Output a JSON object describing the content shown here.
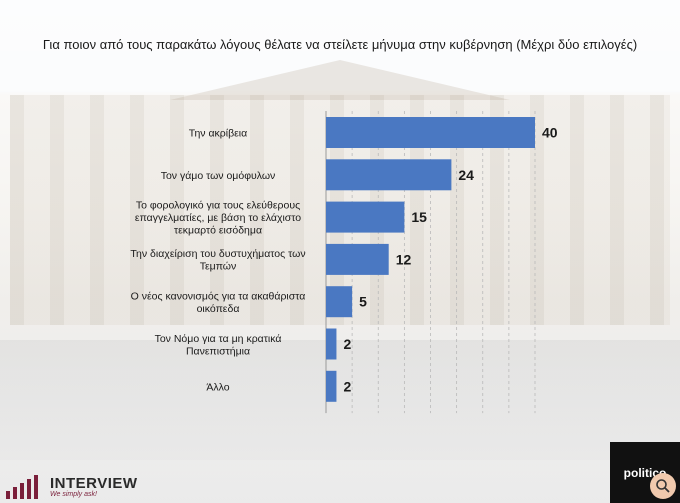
{
  "title": "Για ποιον από τους παρακάτω λόγους θέλατε να στείλετε μήνυμα στην κυβέρνηση (Μέχρι δύο επιλογές)",
  "chart_data": {
    "type": "bar",
    "orientation": "horizontal",
    "categories": [
      [
        "Την ακρίβεια"
      ],
      [
        "Τον γάμο των ομόφυλων"
      ],
      [
        "Το φορολογικό για τους ελεύθερους",
        "επαγγελματίες, με βάση το ελάχιστο",
        "τεκμαρτό εισόδημα"
      ],
      [
        "Την διαχείριση του δυστυχήματος των",
        "Τεμπών"
      ],
      [
        "Ο νέος κανονισμός για τα ακαθάριστα",
        "οικόπεδα"
      ],
      [
        "Τον Νόμο για τα μη κρατικά",
        "Πανεπιστήμια"
      ],
      [
        "Άλλο"
      ]
    ],
    "values": [
      40,
      24,
      15,
      12,
      5,
      2,
      2
    ],
    "value_labels": [
      "40",
      "24",
      "15",
      "12",
      "5",
      "2",
      "2"
    ],
    "bar_color": "#4a78c2",
    "grid": "vertical dashed",
    "xlim": [
      0,
      42
    ]
  },
  "logos": {
    "left_name": "INTERVIEW",
    "left_slogan": "We simply ask!",
    "right_name": "politico"
  },
  "colors": {
    "logo_accent": "#7a1f3a",
    "label_text": "#1a1a1a"
  }
}
